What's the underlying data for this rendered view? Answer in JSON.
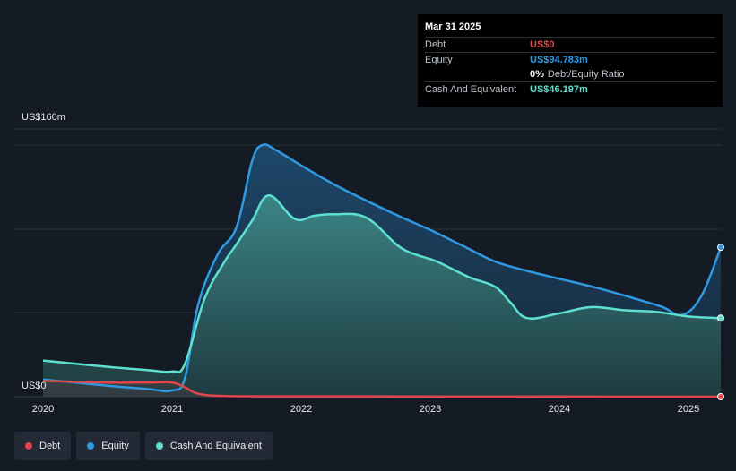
{
  "tooltip": {
    "date": "Mar 31 2025",
    "rows": [
      {
        "key": "Debt",
        "value": "US$0",
        "color": "#e2454a"
      },
      {
        "key": "Equity",
        "value": "US$94.783m",
        "color": "#2f9ae3"
      },
      {
        "key": "",
        "value": "0%",
        "suffix": "Debt/Equity Ratio",
        "color": "#ffffff"
      },
      {
        "key": "Cash And Equivalent",
        "value": "US$46.197m",
        "color": "#5ee0d0"
      }
    ]
  },
  "legend": [
    {
      "label": "Debt",
      "color": "#e2454a"
    },
    {
      "label": "Equity",
      "color": "#2f9ae3"
    },
    {
      "label": "Cash And Equivalent",
      "color": "#5ee0d0"
    }
  ],
  "chart_data": {
    "type": "area",
    "y_top_label": "US$160m",
    "y_bottom_label": "US$0",
    "ylim": [
      0,
      160
    ],
    "xlim": [
      2020.0,
      2025.25
    ],
    "x_tick_labels": [
      "2020",
      "2021",
      "2022",
      "2023",
      "2024",
      "2025"
    ],
    "x_ticks": [
      2020,
      2021,
      2022,
      2023,
      2024,
      2025
    ],
    "series": [
      {
        "name": "Equity",
        "color": "#2f9ae3",
        "x": [
          2020.0,
          2020.5,
          2020.8,
          2021.0,
          2021.1,
          2021.2,
          2021.35,
          2021.5,
          2021.62,
          2021.7,
          2021.8,
          2022.0,
          2022.3,
          2022.7,
          2023.0,
          2023.25,
          2023.5,
          2023.75,
          2024.0,
          2024.3,
          2024.6,
          2024.8,
          2024.95,
          2025.1,
          2025.25
        ],
        "values": [
          11,
          7,
          5,
          4,
          12,
          58,
          90,
          108,
          150,
          160,
          157,
          147,
          133,
          117,
          106,
          96,
          86,
          80,
          75,
          69,
          62,
          57,
          52,
          64,
          95
        ]
      },
      {
        "name": "Cash And Equivalent",
        "color": "#5ee0d0",
        "x": [
          2020.0,
          2020.5,
          2020.8,
          2021.0,
          2021.1,
          2021.25,
          2021.4,
          2021.5,
          2021.62,
          2021.75,
          2021.95,
          2022.1,
          2022.25,
          2022.5,
          2022.75,
          2022.9,
          2023.05,
          2023.3,
          2023.5,
          2023.62,
          2023.75,
          2024.0,
          2024.25,
          2024.5,
          2024.75,
          2025.0,
          2025.25
        ],
        "values": [
          23,
          19,
          17,
          16,
          21,
          62,
          85,
          97,
          112,
          128,
          113,
          115,
          116,
          114,
          96,
          90,
          86,
          76,
          70,
          60,
          50,
          53,
          57,
          55,
          54,
          51,
          50
        ]
      },
      {
        "name": "Debt",
        "color": "#e2454a",
        "x": [
          2020.0,
          2020.5,
          2020.8,
          2021.0,
          2021.1,
          2021.2,
          2021.4,
          2022.0,
          2023.0,
          2024.0,
          2025.0,
          2025.25
        ],
        "values": [
          10,
          9,
          9,
          9,
          6,
          2,
          0.5,
          0.2,
          0.1,
          0.1,
          0,
          0
        ]
      }
    ]
  }
}
